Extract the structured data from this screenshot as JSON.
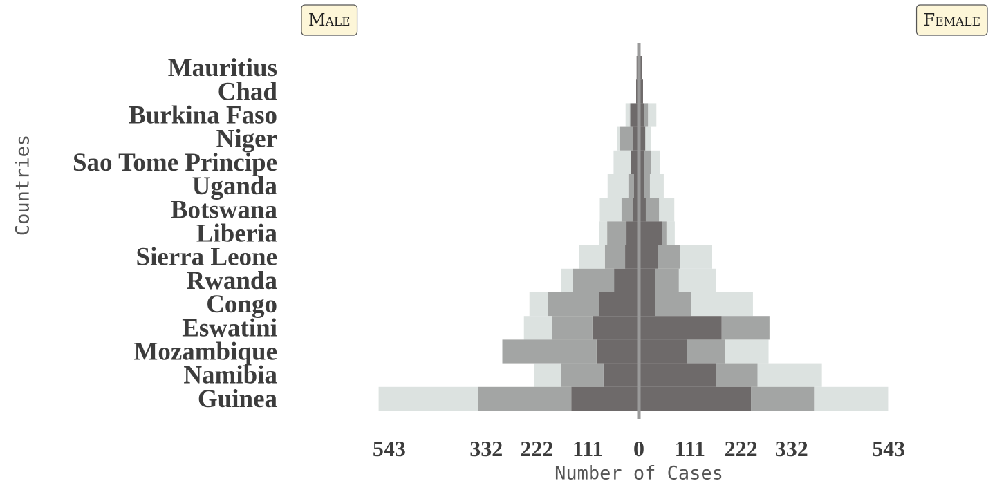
{
  "chart_data": {
    "type": "pyramid",
    "x_label": "Number of Cases",
    "y_label": "Countries",
    "categories": [
      "Mauritius",
      "Chad",
      "Burkina Faso",
      "Niger",
      "Sao Tome Principe",
      "Uganda",
      "Botswana",
      "Liberia",
      "Sierra Leone",
      "Rwanda",
      "Congo",
      "Eswatini",
      "Mozambique",
      "Namibia",
      "Guinea"
    ],
    "xlim": [
      0,
      600
    ],
    "xticks": [
      0,
      111,
      222,
      332,
      543
    ],
    "panels": [
      {
        "label": "Male",
        "side": "left",
        "series": [
          {
            "color": "#6e6a6a",
            "values": [
              5,
              6,
              17,
              14,
              17,
              11,
              14,
              27,
              30,
              54,
              86,
              101,
              92,
              77,
              147
            ]
          },
          {
            "color": "#a3a5a4",
            "values": [
              0,
              0,
              3,
              27,
              0,
              12,
              24,
              42,
              44,
              89,
              111,
              87,
              205,
              92,
              202
            ]
          },
          {
            "color": "#dce2e0",
            "values": [
              0,
              0,
              9,
              6,
              38,
              45,
              47,
              17,
              56,
              26,
              41,
              62,
              0,
              59,
              217
            ]
          }
        ]
      },
      {
        "label": "Female",
        "side": "right",
        "series": [
          {
            "color": "#6e6a6a",
            "values": [
              6,
              9,
              11,
              14,
              11,
              12,
              15,
              51,
              42,
              36,
              36,
              180,
              104,
              168,
              244
            ]
          },
          {
            "color": "#a3a5a4",
            "values": [
              0,
              0,
              9,
              0,
              15,
              12,
              29,
              9,
              48,
              51,
              77,
              104,
              83,
              90,
              137
            ]
          },
          {
            "color": "#dce2e0",
            "values": [
              0,
              0,
              18,
              12,
              20,
              30,
              33,
              18,
              69,
              81,
              135,
              0,
              95,
              140,
              161
            ]
          }
        ]
      }
    ]
  }
}
